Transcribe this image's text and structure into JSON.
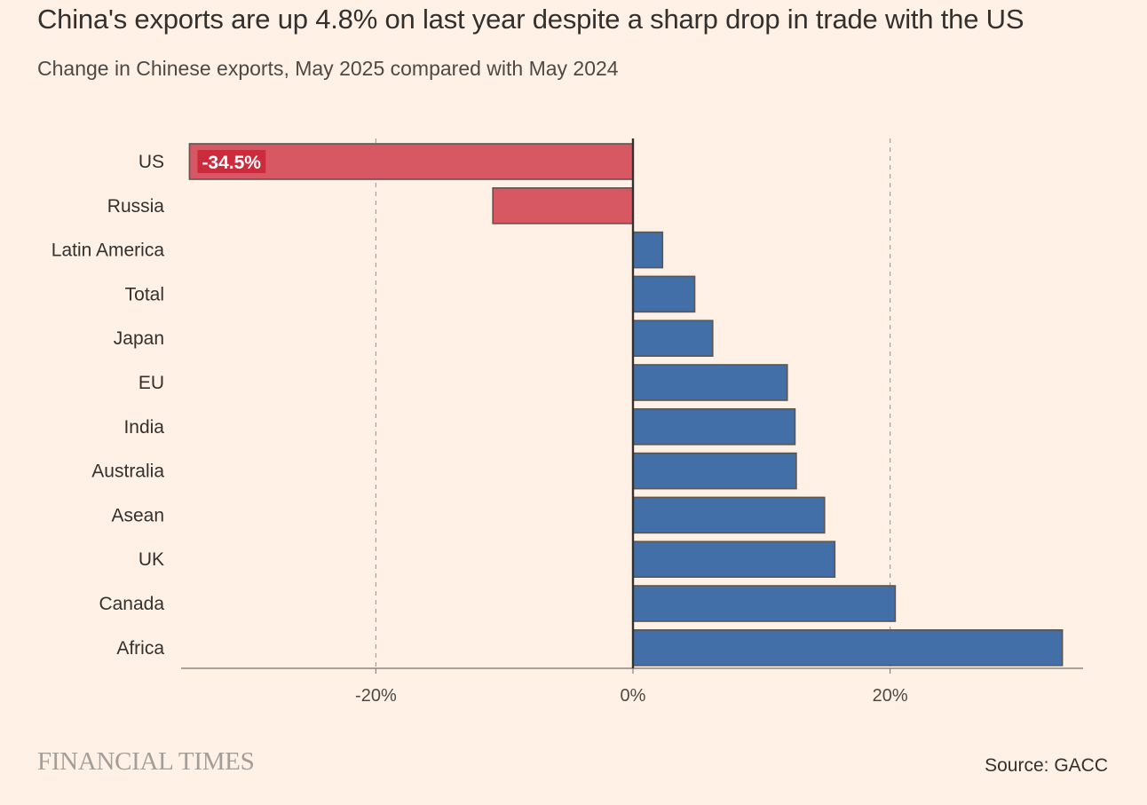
{
  "title": "China's exports are up 4.8% on last year despite a sharp drop in trade with the US",
  "subtitle": "Change in Chinese exports, May 2025 compared with May 2024",
  "brand": "FINANCIAL TIMES",
  "source": "Source: GACC",
  "colors": {
    "negative": "#d75862",
    "positive": "#426fa7",
    "label_bg": "#cc2b3d"
  },
  "chart_data": {
    "type": "bar",
    "orientation": "horizontal",
    "categories": [
      "US",
      "Russia",
      "Latin America",
      "Total",
      "Japan",
      "EU",
      "India",
      "Australia",
      "Asean",
      "UK",
      "Canada",
      "Africa"
    ],
    "values": [
      -34.5,
      -10.9,
      2.3,
      4.8,
      6.2,
      12.0,
      12.6,
      12.7,
      14.9,
      15.7,
      20.4,
      33.4
    ],
    "data_labels": [
      "-34.5%",
      "",
      "",
      "",
      "",
      "",
      "",
      "",
      "",
      "",
      "",
      ""
    ],
    "xlim": [
      -35,
      35
    ],
    "xticks": [
      -20,
      0,
      20
    ],
    "xtick_labels": [
      "-20%",
      "0%",
      "20%"
    ],
    "grid": "vertical dashed",
    "legend": "none"
  }
}
